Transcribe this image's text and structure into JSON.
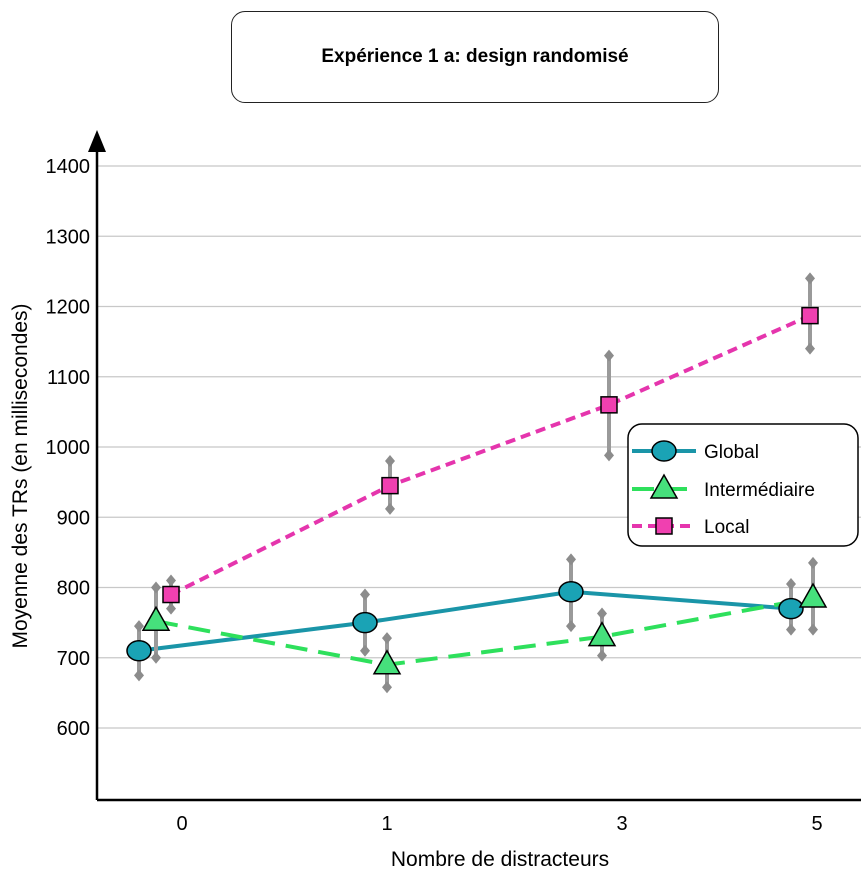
{
  "chart_data": {
    "type": "line",
    "title": "Expérience 1 a: design randomisé",
    "xlabel": "Nombre de distracteurs",
    "ylabel": "Moyenne des TRs (en millisecondes)",
    "categories": [
      "0",
      "1",
      "3",
      "5"
    ],
    "ylim": [
      500,
      1400
    ],
    "yticks": [
      600,
      700,
      800,
      900,
      1000,
      1100,
      1200,
      1300,
      1400
    ],
    "grid": true,
    "legend_position": "right",
    "series": [
      {
        "name": "Global",
        "values": [
          710,
          750,
          794,
          770
        ],
        "errors": [
          [
            675,
            745
          ],
          [
            710,
            790
          ],
          [
            745,
            840
          ],
          [
            740,
            805
          ]
        ],
        "color": "#1a95a8",
        "fill": "#1aa3b5",
        "marker": "circle",
        "dash": "solid"
      },
      {
        "name": "Intermédiaire",
        "values": [
          752,
          690,
          730,
          785
        ],
        "errors": [
          [
            700,
            800
          ],
          [
            658,
            728
          ],
          [
            703,
            763
          ],
          [
            740,
            835
          ]
        ],
        "color": "#2ee05c",
        "fill": "#46e07c",
        "marker": "triangle",
        "dash": "long"
      },
      {
        "name": "Local",
        "values": [
          790,
          945,
          1060,
          1187
        ],
        "errors": [
          [
            770,
            810
          ],
          [
            912,
            980
          ],
          [
            988,
            1130
          ],
          [
            1140,
            1240
          ]
        ],
        "color": "#e535ad",
        "fill": "#f040b0",
        "marker": "square",
        "dash": "short"
      }
    ]
  }
}
